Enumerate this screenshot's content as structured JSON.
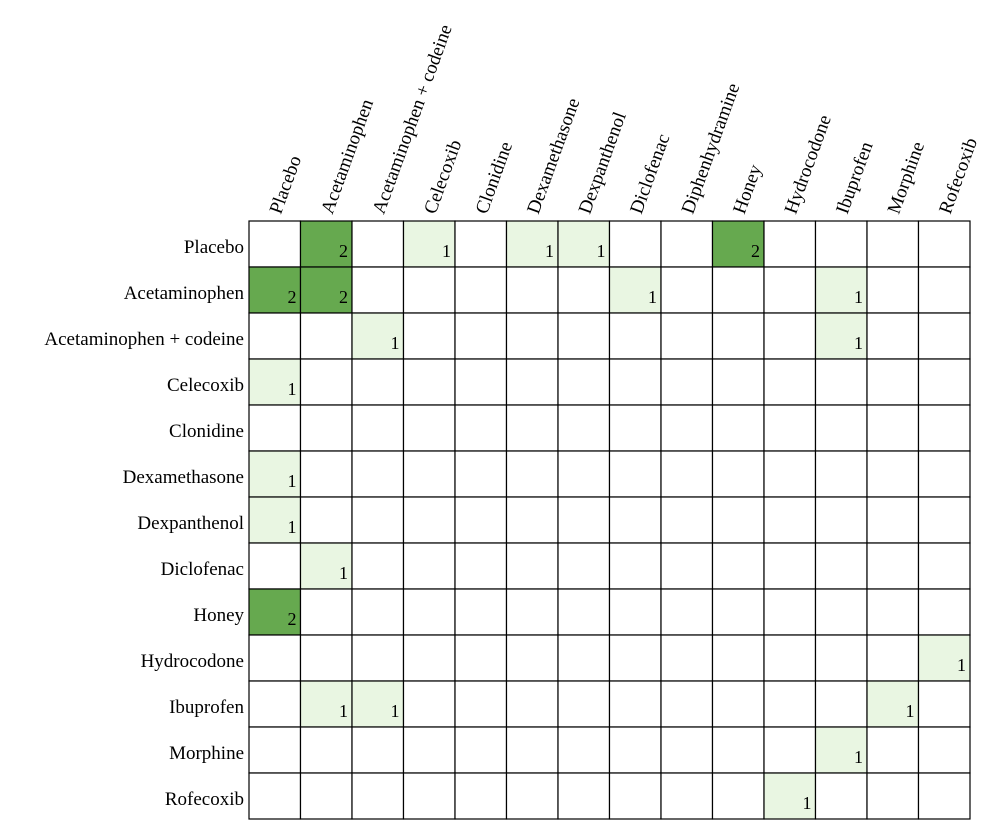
{
  "chart_data": {
    "type": "heatmap",
    "columns": [
      "Placebo",
      "Acetaminophen",
      "Acetaminophen + codeine",
      "Celecoxib",
      "Clonidine",
      "Dexamethasone",
      "Dexpanthenol",
      "Diclofenac",
      "Diphenhydramine",
      "Honey",
      "Hydrocodone",
      "Ibuprofen",
      "Morphine",
      "Rofecoxib"
    ],
    "rows": [
      "Placebo",
      "Acetaminophen",
      "Acetaminophen + codeine",
      "Celecoxib",
      "Clonidine",
      "Dexamethasone",
      "Dexpanthenol",
      "Diclofenac",
      "Honey",
      "Hydrocodone",
      "Ibuprofen",
      "Morphine",
      "Rofecoxib"
    ],
    "values": [
      [
        null,
        2,
        null,
        1,
        null,
        1,
        1,
        null,
        null,
        2,
        null,
        null,
        null,
        null
      ],
      [
        2,
        2,
        null,
        null,
        null,
        null,
        null,
        1,
        null,
        null,
        null,
        1,
        null,
        null
      ],
      [
        null,
        null,
        1,
        null,
        null,
        null,
        null,
        null,
        null,
        null,
        null,
        1,
        null,
        null
      ],
      [
        1,
        null,
        null,
        null,
        null,
        null,
        null,
        null,
        null,
        null,
        null,
        null,
        null,
        null
      ],
      [
        null,
        null,
        null,
        null,
        null,
        null,
        null,
        null,
        null,
        null,
        null,
        null,
        null,
        null
      ],
      [
        1,
        null,
        null,
        null,
        null,
        null,
        null,
        null,
        null,
        null,
        null,
        null,
        null,
        null
      ],
      [
        1,
        null,
        null,
        null,
        null,
        null,
        null,
        null,
        null,
        null,
        null,
        null,
        null,
        null
      ],
      [
        null,
        1,
        null,
        null,
        null,
        null,
        null,
        null,
        null,
        null,
        null,
        null,
        null,
        null
      ],
      [
        2,
        null,
        null,
        null,
        null,
        null,
        null,
        null,
        null,
        null,
        null,
        null,
        null,
        null
      ],
      [
        null,
        null,
        null,
        null,
        null,
        null,
        null,
        null,
        null,
        null,
        null,
        null,
        null,
        1
      ],
      [
        null,
        1,
        1,
        null,
        null,
        null,
        null,
        null,
        null,
        null,
        null,
        null,
        1,
        null
      ],
      [
        null,
        null,
        null,
        null,
        null,
        null,
        null,
        null,
        null,
        null,
        null,
        1,
        null,
        null
      ],
      [
        null,
        null,
        null,
        null,
        null,
        null,
        null,
        null,
        null,
        null,
        1,
        null,
        null,
        null
      ]
    ],
    "color_scale": {
      "1": "#e9f6e2",
      "2": "#66a94f"
    },
    "grid_color": "#000000"
  }
}
